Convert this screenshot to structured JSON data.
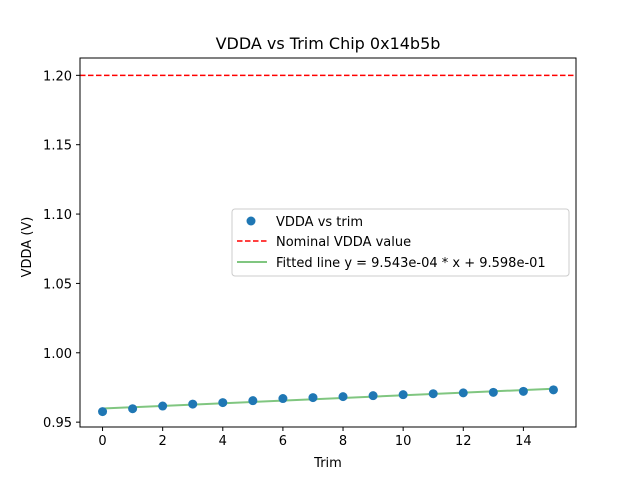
{
  "chart_data": {
    "type": "scatter",
    "title": "VDDA vs Trim Chip 0x14b5b",
    "xlabel": "Trim",
    "ylabel": "VDDA (V)",
    "xlim": [
      -0.75,
      15.75
    ],
    "ylim": [
      0.9465,
      1.2125
    ],
    "xticks": [
      0,
      2,
      4,
      6,
      8,
      10,
      12,
      14
    ],
    "xtick_labels": [
      "0",
      "2",
      "4",
      "6",
      "8",
      "10",
      "12",
      "14"
    ],
    "yticks": [
      0.95,
      1.0,
      1.05,
      1.1,
      1.15,
      1.2
    ],
    "ytick_labels": [
      "0.95",
      "1.00",
      "1.05",
      "1.10",
      "1.15",
      "1.20"
    ],
    "grid": false,
    "series": [
      {
        "name": "VDDA vs trim",
        "kind": "scatter",
        "color": "#1f77b4",
        "x": [
          0,
          1,
          2,
          3,
          4,
          5,
          6,
          7,
          8,
          9,
          10,
          11,
          12,
          13,
          14,
          15
        ],
        "y": [
          0.9576,
          0.9597,
          0.9616,
          0.963,
          0.9641,
          0.9655,
          0.967,
          0.9677,
          0.9684,
          0.9691,
          0.9698,
          0.9705,
          0.9711,
          0.9715,
          0.9722,
          0.9733
        ]
      },
      {
        "name": "Nominal VDDA value",
        "kind": "hline",
        "color": "#ff0000",
        "style": "dashed",
        "y": 1.2
      },
      {
        "name": "Fitted line y = 9.543e-04 * x + 9.598e-01",
        "kind": "line",
        "color": "#2ca02c",
        "slope": 0.0009543,
        "intercept": 0.9598,
        "x": [
          0,
          15
        ]
      }
    ],
    "legend": {
      "position": "center-right",
      "entries": [
        "VDDA vs trim",
        "Nominal VDDA value",
        "Fitted line y = 9.543e-04 * x + 9.598e-01"
      ]
    }
  }
}
